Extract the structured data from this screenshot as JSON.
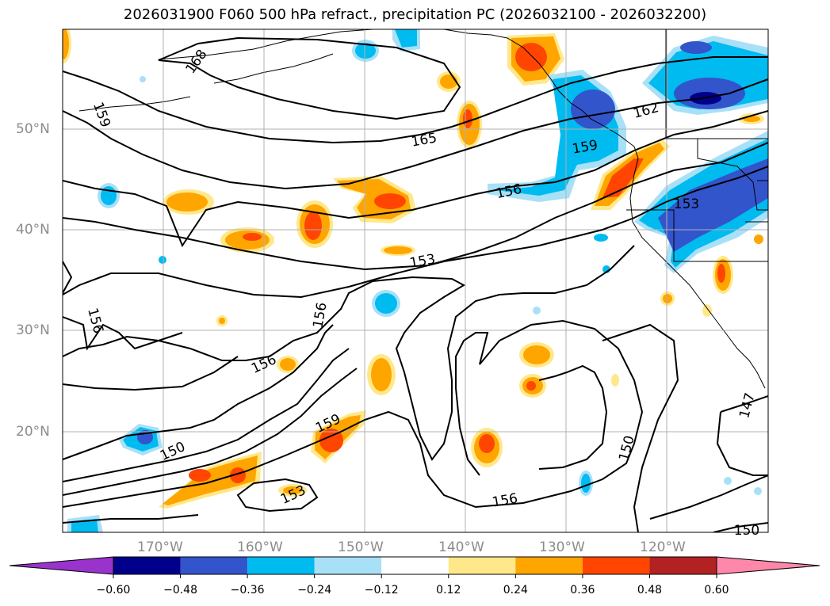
{
  "title": "2026031900 F060 500 hPa refract., precipitation PC (2026032100 - 2026032200)",
  "lat_labels": [
    "50°N",
    "40°N",
    "30°N",
    "20°N"
  ],
  "lon_labels": [
    "170°W",
    "160°W",
    "150°W",
    "140°W",
    "130°W",
    "120°W"
  ],
  "contour_labels": [
    "168",
    "159",
    "165",
    "162",
    "159",
    "156",
    "153",
    "156",
    "153",
    "156",
    "156",
    "159",
    "150",
    "153",
    "156",
    "150",
    "147",
    "150"
  ],
  "colorbar": {
    "ticks": [
      "−0.60",
      "−0.48",
      "−0.36",
      "−0.24",
      "−0.12",
      "0.12",
      "0.24",
      "0.36",
      "0.48",
      "0.60"
    ],
    "colors": [
      "#9933cc",
      "#00008b",
      "#3355cc",
      "#00bbf0",
      "#a8e0f8",
      "#ffffff",
      "#ffe88a",
      "#ffa500",
      "#ff4500",
      "#b22222",
      "#ff88aa"
    ]
  },
  "palette": {
    "land_line": "#000000",
    "grid": "#b0b0b0",
    "neg_light": "#a8e0f8",
    "neg_mid": "#00bbf0",
    "neg_dark": "#3355cc",
    "neg_darkest": "#00008b",
    "pos_light": "#ffe88a",
    "pos_mid": "#ffa500",
    "pos_dark": "#ff4500"
  }
}
